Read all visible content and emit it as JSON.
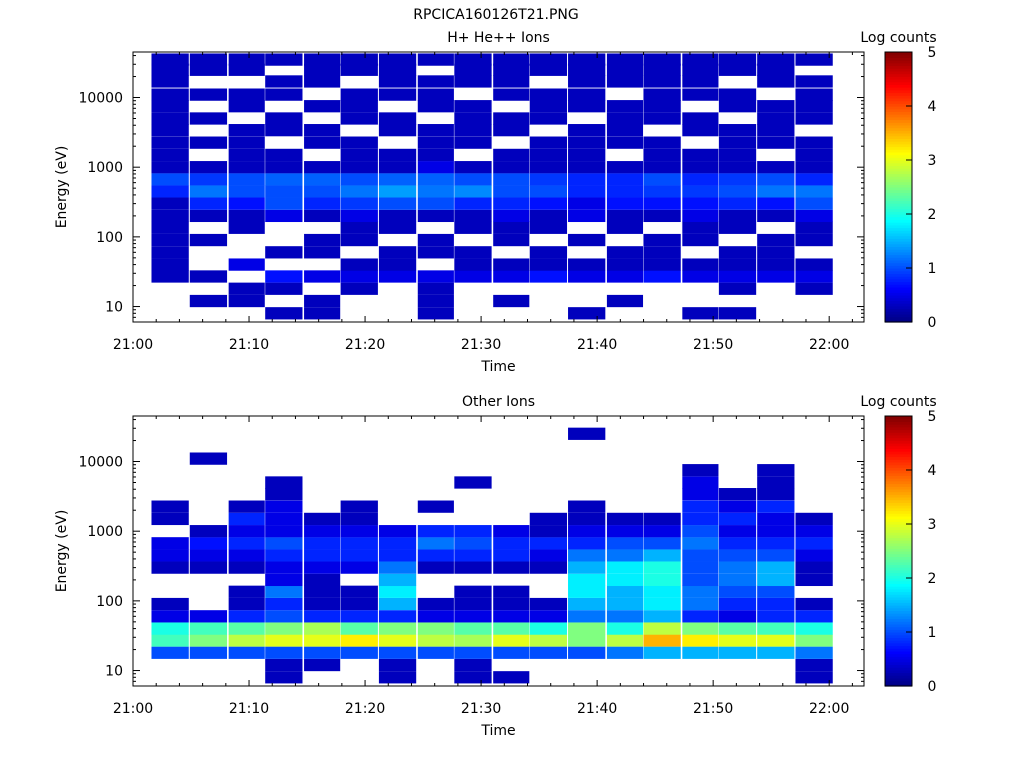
{
  "page_title": "RPCICA160126T21.PNG",
  "chart_data": [
    {
      "type": "heatmap",
      "title": "H+ He++ Ions",
      "xlabel": "Time",
      "ylabel": "Energy (eV)",
      "x_ticks": [
        "21:00",
        "21:10",
        "21:20",
        "21:30",
        "21:40",
        "21:50",
        "22:00"
      ],
      "xlim": [
        "21:00",
        "22:03"
      ],
      "y_scale": "log",
      "y_ticks": [
        "10",
        "100",
        "1000",
        "10000"
      ],
      "ylim": [
        6,
        45000
      ],
      "colorbar": {
        "label": "Log counts",
        "ticks": [
          "0",
          "1",
          "2",
          "3",
          "4",
          "5"
        ],
        "range": [
          0,
          5
        ],
        "colormap": "jet"
      },
      "time_bins_min": [
        3.2,
        6.5,
        9.8,
        13.0,
        16.3,
        19.5,
        22.8,
        26.1,
        29.3,
        32.6,
        35.8,
        39.1,
        42.4,
        45.6,
        48.9,
        52.1,
        55.4,
        58.7
      ],
      "energy_bins_eV": [
        8,
        12,
        18,
        27,
        40,
        60,
        90,
        135,
        200,
        300,
        450,
        670,
        1000,
        1500,
        2250,
        3400,
        5000,
        7500,
        11000,
        17000,
        25000,
        35000
      ],
      "levels_log_counts": [
        [
          0,
          0,
          0,
          0.3,
          0.3,
          0.3,
          0.3,
          0.3,
          0.3,
          0.3,
          0.8,
          1.0,
          0.3,
          0.3,
          0.3,
          0.3,
          0.3,
          0.3,
          0.3,
          0.3,
          0.3,
          0.3
        ],
        [
          0,
          0.3,
          0,
          0.3,
          0,
          0,
          0.3,
          0,
          0.3,
          0.8,
          1.2,
          0.9,
          0.3,
          0,
          0.3,
          0,
          0.3,
          0,
          0.3,
          0,
          0.3,
          0.3
        ],
        [
          0,
          0.3,
          0.3,
          0,
          0.5,
          0,
          0,
          0.3,
          0.3,
          0.7,
          1.0,
          1.0,
          0.3,
          0.3,
          0.3,
          0.3,
          0,
          0.3,
          0.3,
          0,
          0.3,
          0.3
        ],
        [
          0.3,
          0,
          0.3,
          0.7,
          0,
          0.3,
          0,
          0,
          0.5,
          1.0,
          1.0,
          1.1,
          0.3,
          0.3,
          0,
          0.3,
          0.3,
          0,
          0.3,
          0.3,
          0,
          0.3
        ],
        [
          0.3,
          0.3,
          0,
          0.5,
          0,
          0.3,
          0.3,
          0,
          0.3,
          0.8,
          1.0,
          1.1,
          0.3,
          0,
          0.3,
          0.3,
          0,
          0.3,
          0,
          0.3,
          0.3,
          0.3
        ],
        [
          0,
          0,
          0.3,
          0.5,
          0.3,
          0,
          0.3,
          0.3,
          0.5,
          0.9,
          1.2,
          1.0,
          0.3,
          0.3,
          0.3,
          0,
          0.3,
          0.3,
          0.3,
          0,
          0.3,
          0.3
        ],
        [
          0,
          0,
          0,
          0.5,
          0.3,
          0.3,
          0,
          0.3,
          0.3,
          1.0,
          1.4,
          1.1,
          0.3,
          0.3,
          0,
          0.3,
          0.3,
          0,
          0.3,
          0.3,
          0.3,
          0.3
        ],
        [
          0.3,
          0.3,
          0.3,
          0.5,
          0,
          0.3,
          0.3,
          0,
          0.3,
          1.0,
          1.2,
          1.1,
          0.5,
          0.3,
          0.3,
          0.3,
          0,
          0.3,
          0.3,
          0.3,
          0,
          0.3
        ],
        [
          0,
          0,
          0,
          0.5,
          0.3,
          0.3,
          0,
          0.3,
          0.3,
          0.8,
          1.3,
          1.0,
          0.3,
          0,
          0.3,
          0.3,
          0.3,
          0.3,
          0,
          0.3,
          0.3,
          0.3
        ],
        [
          0,
          0.3,
          0,
          0.5,
          0.3,
          0,
          0.3,
          0.3,
          0.5,
          0.8,
          1.0,
          1.0,
          0.3,
          0.3,
          0,
          0.3,
          0.3,
          0,
          0.3,
          0.3,
          0.3,
          0.3
        ],
        [
          0,
          0,
          0,
          0.7,
          0.3,
          0.3,
          0,
          0.3,
          0.3,
          0.7,
          1.0,
          0.9,
          0.3,
          0.3,
          0.3,
          0,
          0.3,
          0.3,
          0.3,
          0,
          0.3,
          0.3
        ],
        [
          0.3,
          0,
          0,
          0.5,
          0.3,
          0,
          0.3,
          0,
          0.5,
          0.5,
          0.8,
          0.8,
          0.3,
          0.3,
          0.3,
          0.3,
          0,
          0.3,
          0.3,
          0.3,
          0.3,
          0.3
        ],
        [
          0,
          0.3,
          0,
          0.5,
          0.3,
          0.3,
          0,
          0.3,
          0.3,
          0.7,
          0.8,
          0.8,
          0.3,
          0,
          0.3,
          0.3,
          0.3,
          0.3,
          0,
          0.3,
          0.3,
          0.3
        ],
        [
          0,
          0,
          0,
          0.7,
          0.3,
          0.3,
          0.3,
          0,
          0.3,
          0.7,
          0.9,
          1.0,
          0.3,
          0.3,
          0.3,
          0,
          0.3,
          0.3,
          0.3,
          0.3,
          0.3,
          0.3
        ],
        [
          0.3,
          0,
          0,
          0.5,
          0.3,
          0,
          0.3,
          0.3,
          0.5,
          0.7,
          0.9,
          0.8,
          0.3,
          0.3,
          0,
          0.3,
          0.3,
          0,
          0.3,
          0.3,
          0.3,
          0.3
        ],
        [
          0.3,
          0,
          0.3,
          0.5,
          0.3,
          0.3,
          0,
          0.3,
          0.3,
          0.8,
          1.0,
          0.9,
          0.3,
          0.3,
          0.3,
          0.3,
          0,
          0.3,
          0.3,
          0,
          0.3,
          0.3
        ],
        [
          0,
          0,
          0,
          0.5,
          0.3,
          0.3,
          0.3,
          0,
          0.3,
          0.7,
          1.2,
          1.0,
          0.3,
          0,
          0.3,
          0.3,
          0.3,
          0.3,
          0,
          0.3,
          0.3,
          0.3
        ],
        [
          0,
          0,
          0.3,
          0.5,
          0.3,
          0,
          0.3,
          0.3,
          0.5,
          1.0,
          1.2,
          0.8,
          0.3,
          0.3,
          0.3,
          0,
          0.3,
          0.3,
          0.3,
          0.3,
          0,
          0.3
        ]
      ]
    },
    {
      "type": "heatmap",
      "title": "Other Ions",
      "xlabel": "Time",
      "ylabel": "Energy (eV)",
      "x_ticks": [
        "21:00",
        "21:10",
        "21:20",
        "21:30",
        "21:40",
        "21:50",
        "22:00"
      ],
      "xlim": [
        "21:00",
        "22:03"
      ],
      "y_scale": "log",
      "y_ticks": [
        "10",
        "100",
        "1000",
        "10000"
      ],
      "ylim": [
        6,
        45000
      ],
      "colorbar": {
        "label": "Log counts",
        "ticks": [
          "0",
          "1",
          "2",
          "3",
          "4",
          "5"
        ],
        "range": [
          0,
          5
        ],
        "colormap": "jet"
      },
      "time_bins_min": [
        3.2,
        6.5,
        9.8,
        13.0,
        16.3,
        19.5,
        22.8,
        26.1,
        29.3,
        32.6,
        35.8,
        39.1,
        42.4,
        45.6,
        48.9,
        52.1,
        55.4,
        58.7
      ],
      "energy_bins_eV": [
        8,
        12,
        18,
        27,
        40,
        60,
        90,
        135,
        200,
        300,
        450,
        670,
        1000,
        1500,
        2250,
        3400,
        5000,
        7500,
        11000,
        17000,
        25000,
        35000
      ],
      "levels_log_counts": [
        [
          0,
          0,
          1.0,
          2.2,
          2.0,
          0.5,
          0.3,
          0,
          0,
          0.3,
          0.5,
          0.5,
          0,
          0.3,
          0.3,
          0,
          0,
          0,
          0,
          0,
          0,
          0
        ],
        [
          0,
          0,
          1.0,
          2.5,
          2.2,
          0.5,
          0,
          0,
          0,
          0.3,
          0.5,
          0.7,
          0.3,
          0,
          0,
          0,
          0,
          0,
          0.3,
          0,
          0,
          0
        ],
        [
          0,
          0,
          1.0,
          2.8,
          2.3,
          0.8,
          0.3,
          0.3,
          0,
          0.3,
          0.5,
          0.8,
          0.5,
          0.8,
          0.3,
          0,
          0,
          0,
          0,
          0,
          0,
          0
        ],
        [
          0.3,
          0.3,
          1.0,
          3.0,
          2.5,
          1.0,
          0.8,
          1.2,
          0.5,
          0.5,
          0.8,
          1.0,
          0.5,
          0.5,
          0.5,
          0.3,
          0.3,
          0,
          0,
          0,
          0,
          0
        ],
        [
          0,
          0.3,
          1.0,
          3.0,
          2.7,
          0.8,
          0.3,
          0.3,
          0.3,
          0.5,
          0.8,
          0.8,
          0.5,
          0.3,
          0,
          0,
          0,
          0,
          0,
          0,
          0,
          0
        ],
        [
          0,
          0,
          1.0,
          3.2,
          2.3,
          0.8,
          0.3,
          0.3,
          0,
          0.5,
          0.8,
          0.8,
          0.5,
          0.3,
          0.3,
          0,
          0,
          0,
          0,
          0,
          0,
          0
        ],
        [
          0.3,
          0.3,
          1.0,
          3.0,
          2.5,
          0.8,
          1.5,
          1.8,
          1.5,
          1.2,
          0.8,
          0.8,
          0.5,
          0,
          0,
          0,
          0,
          0,
          0,
          0,
          0,
          0
        ],
        [
          0,
          0,
          1.0,
          2.8,
          2.5,
          0.5,
          0.3,
          0,
          0,
          0.3,
          0.8,
          1.2,
          0.8,
          0,
          0.3,
          0,
          0,
          0,
          0,
          0,
          0,
          0
        ],
        [
          0.3,
          0.3,
          1.0,
          2.7,
          2.3,
          0.5,
          0.3,
          0.3,
          0,
          0.3,
          0.8,
          1.0,
          0.8,
          0,
          0,
          0,
          0.3,
          0,
          0,
          0,
          0,
          0
        ],
        [
          0.3,
          0,
          1.0,
          3.0,
          2.3,
          0.5,
          0.3,
          0.3,
          0,
          0.3,
          0.8,
          0.8,
          0.5,
          0,
          0,
          0,
          0,
          0,
          0,
          0,
          0,
          0
        ],
        [
          0,
          0,
          1.0,
          2.8,
          2.0,
          0.5,
          0.3,
          0,
          0,
          0.3,
          0.5,
          0.8,
          0.3,
          0.3,
          0,
          0,
          0,
          0,
          0,
          0,
          0,
          0
        ],
        [
          0,
          0,
          1.0,
          2.5,
          2.5,
          1.2,
          1.5,
          1.8,
          1.8,
          1.5,
          1.2,
          0.8,
          0.5,
          0.3,
          0.3,
          0,
          0,
          0,
          0,
          0,
          0.3,
          0
        ],
        [
          0,
          0,
          1.2,
          2.8,
          2.0,
          1.2,
          1.5,
          1.5,
          1.8,
          1.8,
          1.2,
          1.0,
          0.5,
          0.3,
          0,
          0,
          0,
          0,
          0,
          0,
          0,
          0
        ],
        [
          0,
          0,
          1.5,
          3.5,
          2.8,
          1.5,
          1.8,
          1.8,
          2.0,
          2.0,
          1.5,
          1.0,
          0.5,
          0.3,
          0,
          0,
          0,
          0,
          0,
          0,
          0,
          0
        ],
        [
          0,
          0,
          1.5,
          3.2,
          2.5,
          0.8,
          1.2,
          1.2,
          1.0,
          1.0,
          1.0,
          1.2,
          1.0,
          0.8,
          0.8,
          0.5,
          0.5,
          0.3,
          0,
          0,
          0,
          0
        ],
        [
          0,
          0,
          1.5,
          3.0,
          2.3,
          0.5,
          0.8,
          1.0,
          1.2,
          1.2,
          1.0,
          0.8,
          0.5,
          0.8,
          0.5,
          0.3,
          0,
          0,
          0,
          0,
          0,
          0
        ],
        [
          0,
          0,
          1.5,
          3.0,
          2.2,
          0.8,
          0.8,
          1.0,
          1.5,
          1.5,
          1.0,
          0.8,
          0.5,
          0.5,
          0.8,
          0.3,
          0.3,
          0.3,
          0,
          0,
          0,
          0
        ],
        [
          0.3,
          0.3,
          1.2,
          2.5,
          2.0,
          0.8,
          0.3,
          0,
          0.3,
          0.3,
          0.5,
          0.8,
          0.5,
          0.3,
          0,
          0,
          0,
          0,
          0,
          0,
          0,
          0
        ]
      ]
    }
  ]
}
